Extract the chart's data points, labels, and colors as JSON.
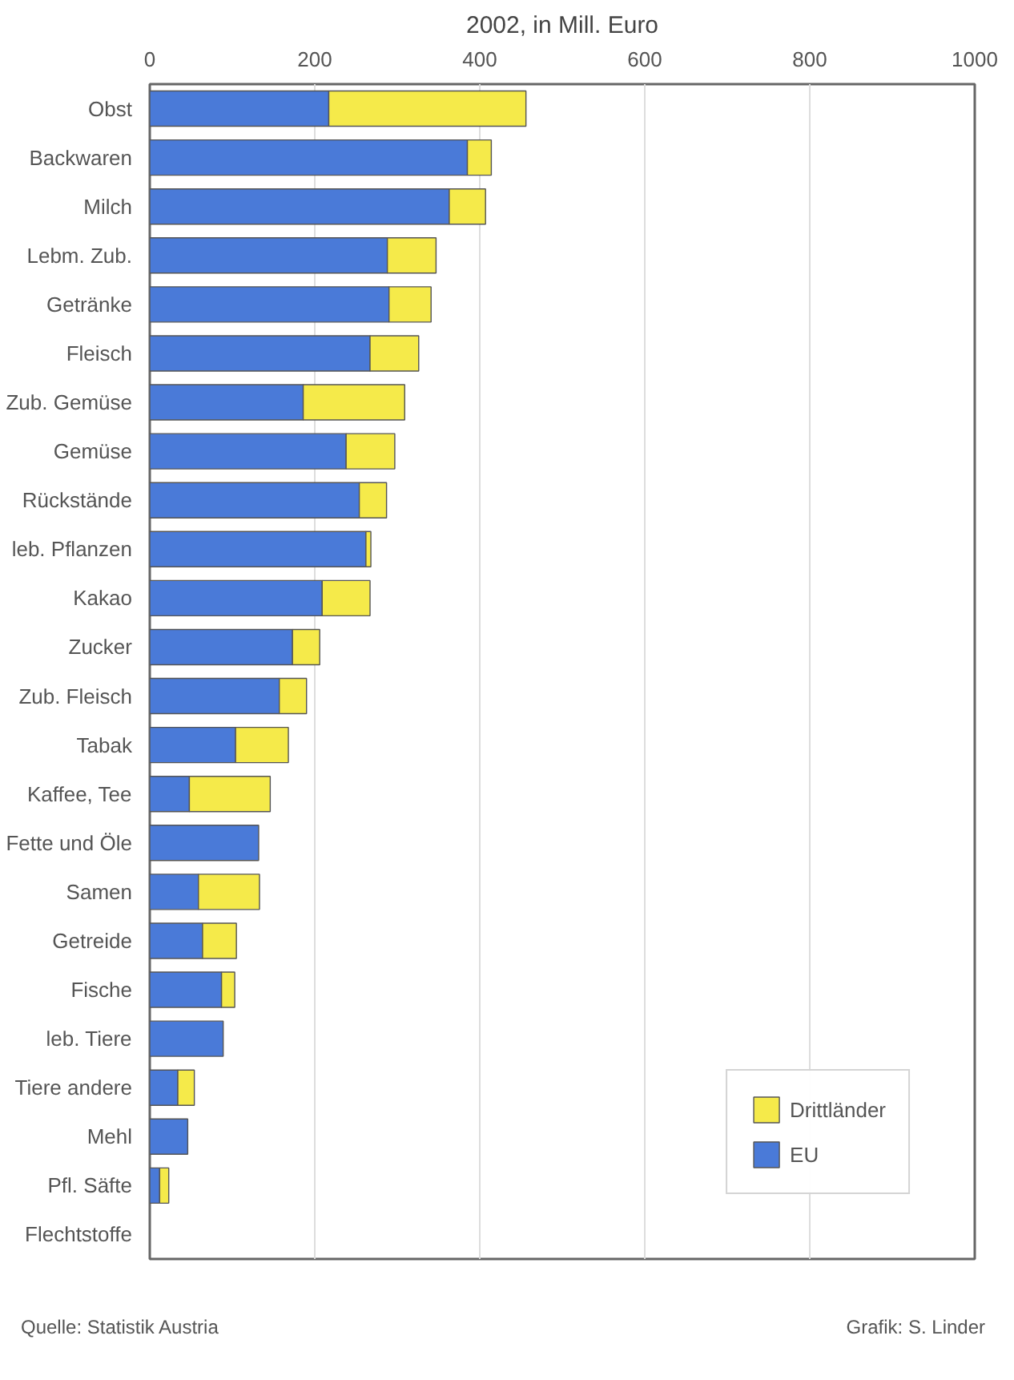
{
  "chart_data": {
    "type": "bar",
    "orientation": "horizontal",
    "stacked": true,
    "title": "2002, in Mill. Euro",
    "categories": [
      "Obst",
      "Backwaren",
      "Milch",
      "Lebm. Zub.",
      "Getränke",
      "Fleisch",
      "Zub. Gemüse",
      "Gemüse",
      "Rückstände",
      "leb. Pflanzen",
      "Kakao",
      "Zucker",
      "Zub. Fleisch",
      "Tabak",
      "Kaffee, Tee",
      "Fette und Öle",
      "Samen",
      "Getreide",
      "Fische",
      "leb. Tiere",
      "Tiere andere",
      "Mehl",
      "Pfl. Säfte",
      "Flechtstoffe"
    ],
    "series": [
      {
        "name": "EU",
        "color": "#4a7ad8",
        "values": [
          217,
          385,
          363,
          288,
          290,
          267,
          186,
          238,
          254,
          262,
          209,
          173,
          157,
          104,
          48,
          132,
          59,
          64,
          87,
          89,
          34,
          46,
          12,
          0
        ]
      },
      {
        "name": "Drittländer",
        "color": "#f5ea4a",
        "values": [
          239,
          29,
          44,
          59,
          51,
          59,
          123,
          59,
          33,
          6,
          58,
          33,
          33,
          64,
          98,
          0,
          74,
          41,
          16,
          0,
          20,
          0,
          11,
          0
        ]
      }
    ],
    "xlim": [
      0,
      1000
    ],
    "xticks": [
      0,
      200,
      400,
      600,
      800,
      1000
    ],
    "grid": "x",
    "legend": "bottom right",
    "annotations": [
      "Quelle: Statistik Austria",
      "Grafik: S. Linder"
    ]
  }
}
